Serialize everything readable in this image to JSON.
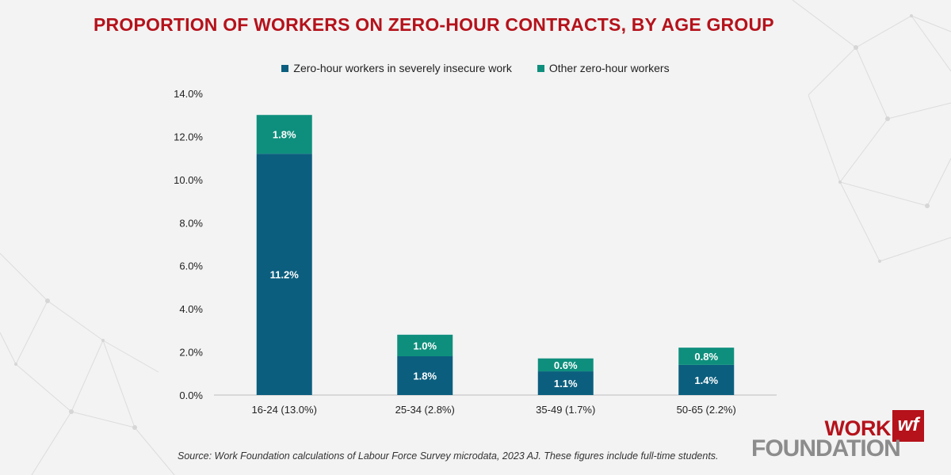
{
  "title": "PROPORTION OF WORKERS ON ZERO-HOUR CONTRACTS, BY AGE GROUP",
  "source": "Source: Work Foundation calculations of Labour Force Survey microdata, 2023 AJ. These figures include full-time students.",
  "logo": {
    "word1": "WORK",
    "word2": "FOUNDATION",
    "mark": "wf"
  },
  "colors": {
    "title": "#b5121b",
    "series1": "#0b5e7e",
    "series2": "#0e8f7d",
    "axis": "#bdbdbd"
  },
  "chart_data": {
    "type": "bar",
    "stacked": true,
    "categories": [
      "16-24 (13.0%)",
      "25-34 (2.8%)",
      "35-49 (1.7%)",
      "50-65 (2.2%)"
    ],
    "series": [
      {
        "name": "Zero-hour workers in severely insecure work",
        "values": [
          11.2,
          1.8,
          1.1,
          1.4
        ],
        "labels": [
          "11.2%",
          "1.8%",
          "1.1%",
          "1.4%"
        ],
        "color": "#0b5e7e"
      },
      {
        "name": "Other zero-hour workers",
        "values": [
          1.8,
          1.0,
          0.6,
          0.8
        ],
        "labels": [
          "1.8%",
          "1.0%",
          "0.6%",
          "0.8%"
        ],
        "color": "#0e8f7d"
      }
    ],
    "ylim": [
      0,
      14
    ],
    "yticks": [
      0,
      2,
      4,
      6,
      8,
      10,
      12,
      14
    ],
    "ytick_labels": [
      "0.0%",
      "2.0%",
      "4.0%",
      "6.0%",
      "8.0%",
      "10.0%",
      "12.0%",
      "14.0%"
    ],
    "legend_position": "top",
    "grid": false
  }
}
